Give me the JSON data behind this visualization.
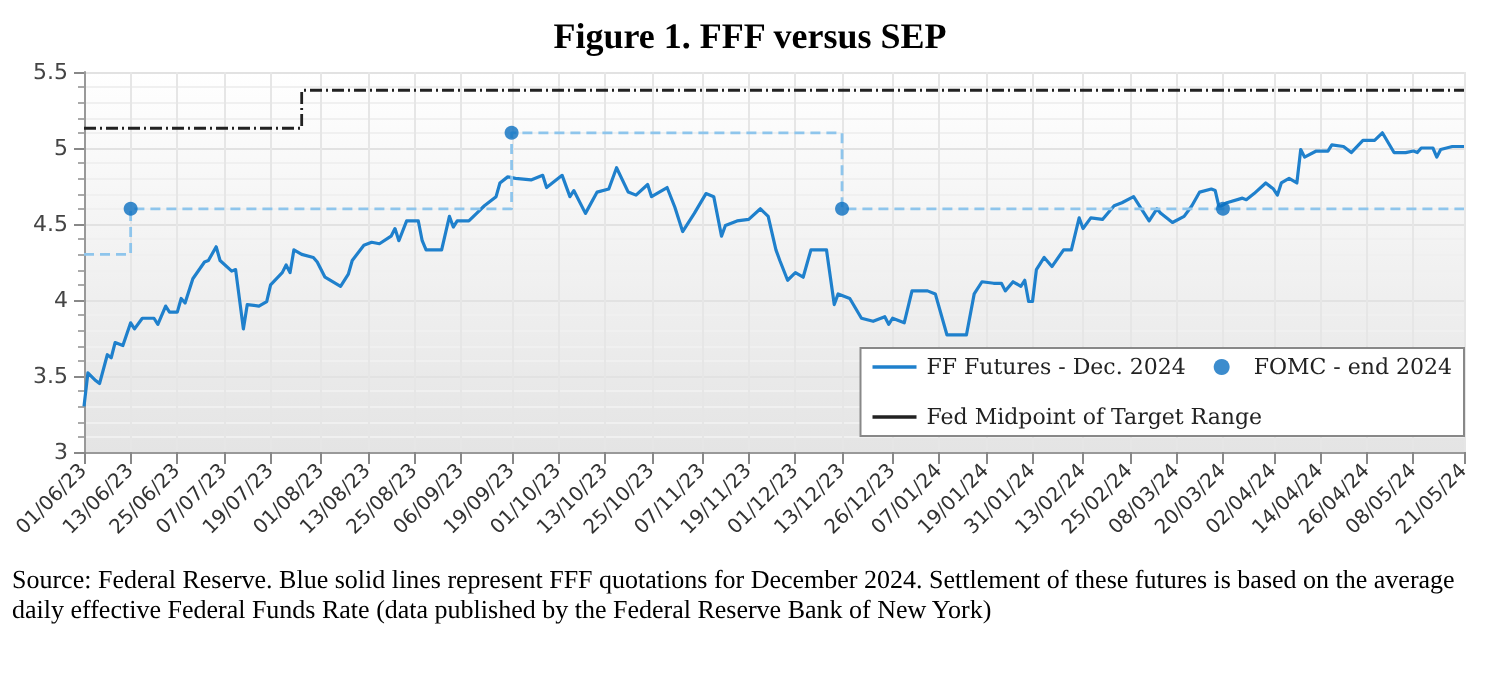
{
  "chart_data": {
    "type": "line",
    "title": "Figure 1. FFF versus SEP",
    "annotations": [
      "Source: Federal Reserve. Blue solid lines represent FFF quotations for December 2024. Settlement of these futures is based on the average daily effective Federal Funds Rate (data published by the Federal Reserve Bank of New York)"
    ],
    "xlim": [
      "2023-06-01",
      "2024-05-21"
    ],
    "xticks": [
      {
        "value": "2023-06-01",
        "label": "01/06/23"
      },
      {
        "value": "2023-06-13",
        "label": "13/06/23"
      },
      {
        "value": "2023-06-25",
        "label": "25/06/23"
      },
      {
        "value": "2023-07-07",
        "label": "07/07/23"
      },
      {
        "value": "2023-07-19",
        "label": "19/07/23"
      },
      {
        "value": "2023-08-01",
        "label": "01/08/23"
      },
      {
        "value": "2023-08-13",
        "label": "13/08/23"
      },
      {
        "value": "2023-08-25",
        "label": "25/08/23"
      },
      {
        "value": "2023-09-06",
        "label": "06/09/23"
      },
      {
        "value": "2023-09-19",
        "label": "19/09/23"
      },
      {
        "value": "2023-10-01",
        "label": "01/10/23"
      },
      {
        "value": "2023-10-13",
        "label": "13/10/23"
      },
      {
        "value": "2023-10-25",
        "label": "25/10/23"
      },
      {
        "value": "2023-11-07",
        "label": "07/11/23"
      },
      {
        "value": "2023-11-19",
        "label": "19/11/23"
      },
      {
        "value": "2023-12-01",
        "label": "01/12/23"
      },
      {
        "value": "2023-12-13",
        "label": "13/12/23"
      },
      {
        "value": "2023-12-26",
        "label": "26/12/23"
      },
      {
        "value": "2024-01-07",
        "label": "07/01/24"
      },
      {
        "value": "2024-01-19",
        "label": "19/01/24"
      },
      {
        "value": "2024-01-31",
        "label": "31/01/24"
      },
      {
        "value": "2024-02-13",
        "label": "13/02/24"
      },
      {
        "value": "2024-02-25",
        "label": "25/02/24"
      },
      {
        "value": "2024-03-08",
        "label": "08/03/24"
      },
      {
        "value": "2024-03-20",
        "label": "20/03/24"
      },
      {
        "value": "2024-04-02",
        "label": "02/04/24"
      },
      {
        "value": "2024-04-14",
        "label": "14/04/24"
      },
      {
        "value": "2024-04-26",
        "label": "26/04/24"
      },
      {
        "value": "2024-05-08",
        "label": "08/05/24"
      },
      {
        "value": "2024-05-21",
        "label": "21/05/24"
      }
    ],
    "ylim": [
      3,
      5.5
    ],
    "yticks": [
      3,
      3.5,
      4,
      4.5,
      5,
      5.5
    ],
    "grid": true,
    "legend": "bottom right",
    "series": [
      {
        "name": "FF Futures - Dec. 2024",
        "color": "#1f80cc",
        "line_style": "solid",
        "marker": "none",
        "x": [
          "2023-06-01",
          "2023-06-02",
          "2023-06-04",
          "2023-06-05",
          "2023-06-07",
          "2023-06-08",
          "2023-06-09",
          "2023-06-11",
          "2023-06-13",
          "2023-06-14",
          "2023-06-16",
          "2023-06-19",
          "2023-06-20",
          "2023-06-22",
          "2023-06-23",
          "2023-06-25",
          "2023-06-26",
          "2023-06-27",
          "2023-06-29",
          "2023-07-02",
          "2023-07-03",
          "2023-07-05",
          "2023-07-06",
          "2023-07-09",
          "2023-07-10",
          "2023-07-12",
          "2023-07-13",
          "2023-07-16",
          "2023-07-18",
          "2023-07-19",
          "2023-07-22",
          "2023-07-23",
          "2023-07-24",
          "2023-07-25",
          "2023-07-27",
          "2023-07-30",
          "2023-07-31",
          "2023-08-02",
          "2023-08-06",
          "2023-08-08",
          "2023-08-09",
          "2023-08-12",
          "2023-08-14",
          "2023-08-16",
          "2023-08-19",
          "2023-08-20",
          "2023-08-21",
          "2023-08-23",
          "2023-08-26",
          "2023-08-27",
          "2023-08-28",
          "2023-09-01",
          "2023-09-03",
          "2023-09-04",
          "2023-09-05",
          "2023-09-08",
          "2023-09-10",
          "2023-09-12",
          "2023-09-15",
          "2023-09-16",
          "2023-09-18",
          "2023-09-20",
          "2023-09-24",
          "2023-09-27",
          "2023-09-28",
          "2023-10-02",
          "2023-10-04",
          "2023-10-05",
          "2023-10-08",
          "2023-10-11",
          "2023-10-14",
          "2023-10-16",
          "2023-10-19",
          "2023-10-21",
          "2023-10-24",
          "2023-10-25",
          "2023-10-29",
          "2023-10-31",
          "2023-11-02",
          "2023-11-05",
          "2023-11-08",
          "2023-11-10",
          "2023-11-12",
          "2023-11-13",
          "2023-11-16",
          "2023-11-19",
          "2023-11-22",
          "2023-11-24",
          "2023-11-26",
          "2023-11-27",
          "2023-11-29",
          "2023-12-01",
          "2023-12-03",
          "2023-12-05",
          "2023-12-09",
          "2023-12-11",
          "2023-12-12",
          "2023-12-15",
          "2023-12-18",
          "2023-12-21",
          "2023-12-24",
          "2023-12-25",
          "2023-12-26",
          "2023-12-29",
          "2023-12-31",
          "2024-01-04",
          "2024-01-06",
          "2024-01-09",
          "2024-01-14",
          "2024-01-16",
          "2024-01-18",
          "2024-01-21",
          "2024-01-23",
          "2024-01-24",
          "2024-01-26",
          "2024-01-28",
          "2024-01-29",
          "2024-01-30",
          "2024-01-31",
          "2024-02-01",
          "2024-02-03",
          "2024-02-05",
          "2024-02-08",
          "2024-02-10",
          "2024-02-12",
          "2024-02-13",
          "2024-02-15",
          "2024-02-18",
          "2024-02-21",
          "2024-02-23",
          "2024-02-26",
          "2024-02-28",
          "2024-03-01",
          "2024-03-03",
          "2024-03-04",
          "2024-03-07",
          "2024-03-10",
          "2024-03-12",
          "2024-03-14",
          "2024-03-17",
          "2024-03-18",
          "2024-03-19",
          "2024-03-21",
          "2024-03-25",
          "2024-03-26",
          "2024-03-28",
          "2024-03-31",
          "2024-04-02",
          "2024-04-03",
          "2024-04-04",
          "2024-04-06",
          "2024-04-08",
          "2024-04-09",
          "2024-04-10",
          "2024-04-13",
          "2024-04-16",
          "2024-04-17",
          "2024-04-20",
          "2024-04-22",
          "2024-04-25",
          "2024-04-28",
          "2024-04-30",
          "2024-05-03",
          "2024-05-06",
          "2024-05-08",
          "2024-05-09",
          "2024-05-10",
          "2024-05-13",
          "2024-05-14",
          "2024-05-15",
          "2024-05-18",
          "2024-05-21"
        ],
        "values": [
          3.3,
          3.52,
          3.47,
          3.45,
          3.64,
          3.62,
          3.72,
          3.7,
          3.85,
          3.81,
          3.88,
          3.88,
          3.84,
          3.96,
          3.92,
          3.92,
          4.01,
          3.98,
          4.14,
          4.25,
          4.26,
          4.35,
          4.26,
          4.19,
          4.2,
          3.81,
          3.97,
          3.96,
          3.99,
          4.1,
          4.18,
          4.23,
          4.18,
          4.33,
          4.3,
          4.28,
          4.25,
          4.15,
          4.09,
          4.17,
          4.26,
          4.36,
          4.38,
          4.37,
          4.42,
          4.47,
          4.39,
          4.52,
          4.52,
          4.39,
          4.33,
          4.33,
          4.55,
          4.48,
          4.52,
          4.52,
          4.57,
          4.62,
          4.68,
          4.77,
          4.81,
          4.8,
          4.79,
          4.82,
          4.74,
          4.82,
          4.68,
          4.72,
          4.57,
          4.71,
          4.73,
          4.87,
          4.71,
          4.69,
          4.76,
          4.68,
          4.74,
          4.61,
          4.45,
          4.57,
          4.7,
          4.68,
          4.42,
          4.49,
          4.52,
          4.53,
          4.6,
          4.55,
          4.33,
          4.26,
          4.13,
          4.18,
          4.15,
          4.33,
          4.33,
          3.97,
          4.04,
          4.01,
          3.88,
          3.86,
          3.89,
          3.84,
          3.88,
          3.85,
          4.06,
          4.06,
          4.04,
          3.77,
          3.77,
          4.04,
          4.12,
          4.11,
          4.11,
          4.06,
          4.12,
          4.09,
          4.13,
          3.99,
          3.99,
          4.2,
          4.28,
          4.22,
          4.33,
          4.33,
          4.54,
          4.47,
          4.54,
          4.53,
          4.62,
          4.64,
          4.68,
          4.6,
          4.52,
          4.6,
          4.57,
          4.51,
          4.55,
          4.62,
          4.71,
          4.73,
          4.72,
          4.61,
          4.64,
          4.67,
          4.66,
          4.7,
          4.77,
          4.73,
          4.69,
          4.77,
          4.8,
          4.77,
          4.99,
          4.94,
          4.98,
          4.98,
          5.02,
          5.01,
          4.97,
          5.05,
          5.05,
          5.1,
          4.97,
          4.97,
          4.98,
          4.97,
          5.0,
          5.0,
          4.94,
          4.99,
          5.01,
          5.01
        ]
      },
      {
        "type": "step",
        "color": "#8ec5ec",
        "line_style": "dashed",
        "marker": "none",
        "x": [
          "2023-06-01",
          "2023-06-13",
          "2023-09-19",
          "2023-12-13",
          "2024-03-20",
          "2024-05-21"
        ],
        "values": [
          4.3,
          4.6,
          5.1,
          4.6,
          4.6,
          4.6
        ]
      },
      {
        "name": "FOMC - end 2024",
        "type": "scatter",
        "color": "#0b6fc0",
        "marker": "circle",
        "x": [
          "2023-06-13",
          "2023-09-19",
          "2023-12-13",
          "2024-03-20"
        ],
        "values": [
          4.6,
          5.1,
          4.6,
          4.6
        ]
      },
      {
        "name": "Fed Midpoint of Target Range",
        "type": "step",
        "color": "#222222",
        "line_style": "dashed",
        "marker": "none",
        "x": [
          "2023-06-01",
          "2023-07-27",
          "2024-05-21"
        ],
        "values": [
          5.13,
          5.38,
          5.38
        ]
      }
    ]
  }
}
